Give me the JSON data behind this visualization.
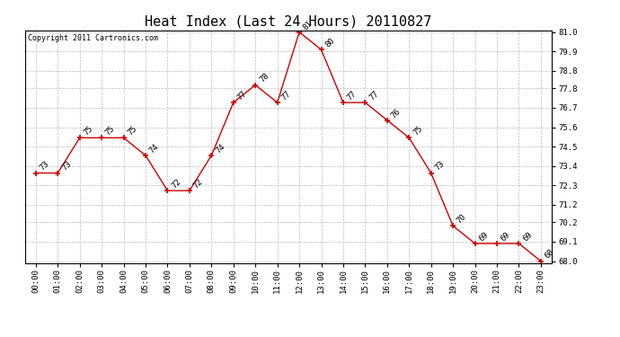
{
  "title": "Heat Index (Last 24 Hours) 20110827",
  "copyright_text": "Copyright 2011 Cartronics.com",
  "hours": [
    0,
    1,
    2,
    3,
    4,
    5,
    6,
    7,
    8,
    9,
    10,
    11,
    12,
    13,
    14,
    15,
    16,
    17,
    18,
    19,
    20,
    21,
    22,
    23
  ],
  "values": [
    73,
    73,
    75,
    75,
    75,
    74,
    72,
    72,
    74,
    77,
    78,
    77,
    81,
    80,
    77,
    77,
    76,
    75,
    73,
    70,
    69,
    69,
    69,
    68
  ],
  "xlabels": [
    "00:00",
    "01:00",
    "02:00",
    "03:00",
    "04:00",
    "05:00",
    "06:00",
    "07:00",
    "08:00",
    "09:00",
    "10:00",
    "11:00",
    "12:00",
    "13:00",
    "14:00",
    "15:00",
    "16:00",
    "17:00",
    "18:00",
    "19:00",
    "20:00",
    "21:00",
    "22:00",
    "23:00"
  ],
  "ymin": 68.0,
  "ymax": 81.0,
  "yticks": [
    68.0,
    69.1,
    70.2,
    71.2,
    72.3,
    73.4,
    74.5,
    75.6,
    76.7,
    77.8,
    78.8,
    79.9,
    81.0
  ],
  "line_color": "#cc0000",
  "marker_color": "#cc0000",
  "grid_color": "#bbbbbb",
  "background_color": "#ffffff",
  "title_fontsize": 11,
  "copyright_fontsize": 6,
  "label_fontsize": 6.5,
  "annotation_fontsize": 6.5
}
